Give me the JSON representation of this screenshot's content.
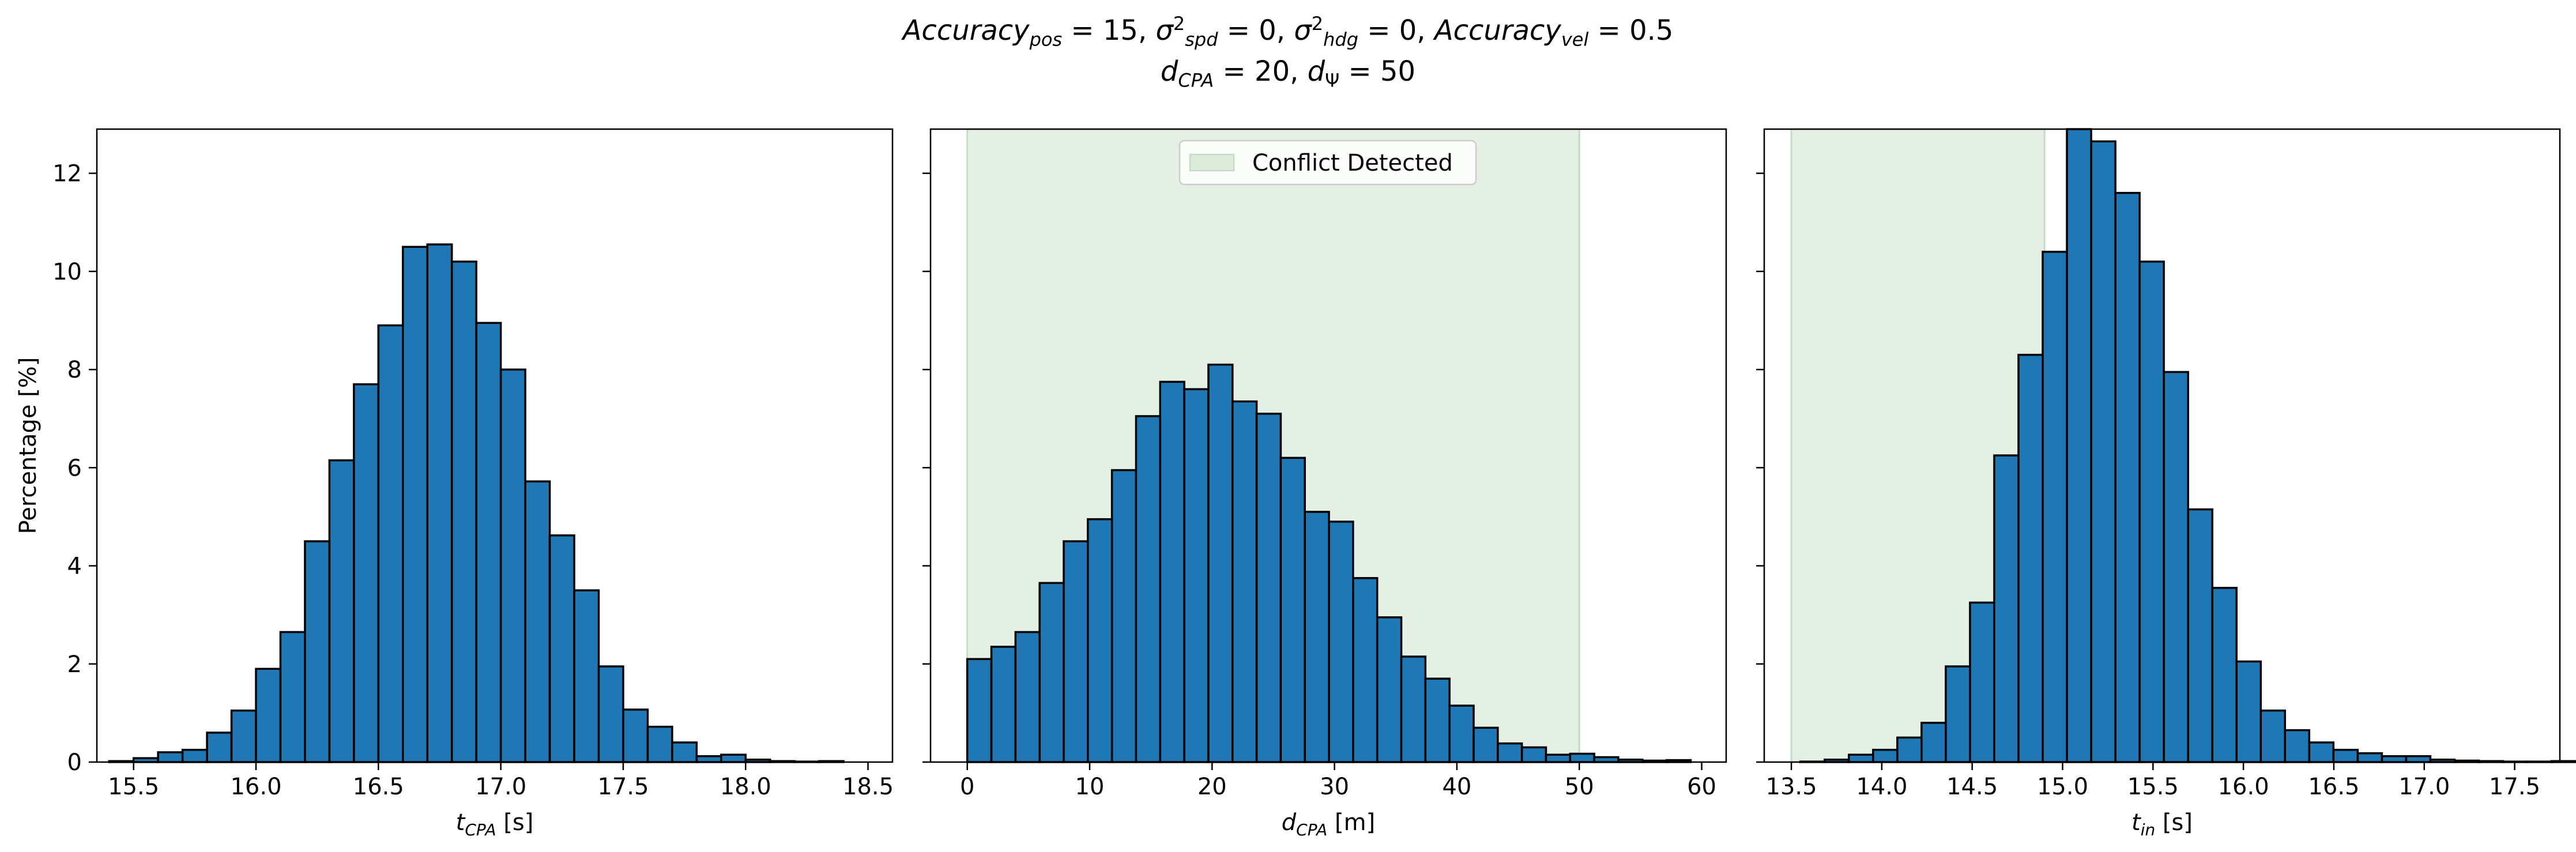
{
  "figure": {
    "title_line1_html": "<i>Accuracy</i><sub><i>pos</i></sub> = 15, <i>σ</i><sup>2</sup><sub><i>spd</i></sub> = 0, <i>σ</i><sup>2</sup><sub><i>hdg</i></sub> = 0, <i>Accuracy</i><sub><i>vel</i></sub> = 0.5",
    "title_line2_html": "<i>d</i><sub><i>CPA</i></sub> = 20, <i>d</i><sub>Ψ</sub> = 50",
    "colors": {
      "bar": "#1f77b4",
      "edge": "#000000",
      "shade": "#dcebdc",
      "shade_edge": "#c3dcc3"
    }
  },
  "chart_data": [
    {
      "type": "bar",
      "subtype": "histogram",
      "xlabel": "t_CPA [s]",
      "xlabel_main": "t",
      "xlabel_sub": "CPA",
      "xlabel_unit": " [s]",
      "ylabel": "Percentage [%]",
      "xlim": [
        15.35,
        18.6
      ],
      "ylim": [
        0,
        12.9
      ],
      "xticks": [
        15.5,
        16.0,
        16.5,
        17.0,
        17.5,
        18.0,
        18.5
      ],
      "xtick_labels": [
        "15.5",
        "16.0",
        "16.5",
        "17.0",
        "17.5",
        "18.0",
        "18.5"
      ],
      "yticks": [
        0,
        2,
        4,
        6,
        8,
        10,
        12
      ],
      "ytick_labels": [
        "0",
        "2",
        "4",
        "6",
        "8",
        "10",
        "12"
      ],
      "bin_start": 15.4,
      "bin_width": 0.1,
      "values": [
        0.02,
        0.08,
        0.2,
        0.25,
        0.6,
        1.05,
        1.9,
        2.65,
        4.5,
        6.15,
        7.7,
        8.9,
        10.5,
        10.55,
        10.2,
        8.95,
        8.0,
        5.72,
        4.62,
        3.5,
        1.95,
        1.07,
        0.72,
        0.4,
        0.12,
        0.15,
        0.05,
        0.02,
        0.01,
        0.02
      ],
      "shaded_region": null,
      "legend": null
    },
    {
      "type": "bar",
      "subtype": "histogram",
      "xlabel": "d_CPA [m]",
      "xlabel_main": "d",
      "xlabel_sub": "CPA",
      "xlabel_unit": " [m]",
      "ylabel": "",
      "xlim": [
        -3,
        62
      ],
      "ylim": [
        0,
        12.9
      ],
      "xticks": [
        0,
        10,
        20,
        30,
        40,
        50,
        60
      ],
      "xtick_labels": [
        "0",
        "10",
        "20",
        "30",
        "40",
        "50",
        "60"
      ],
      "yticks": [
        0,
        2,
        4,
        6,
        8,
        10,
        12
      ],
      "ytick_labels": [
        "",
        "",
        "",
        "",
        "",
        "",
        ""
      ],
      "bin_start": 0,
      "bin_width": 1.97,
      "values": [
        2.1,
        2.35,
        2.65,
        3.65,
        4.5,
        4.95,
        5.95,
        7.05,
        7.75,
        7.6,
        8.1,
        7.35,
        7.1,
        6.2,
        5.1,
        4.9,
        3.75,
        2.95,
        2.15,
        1.7,
        1.15,
        0.7,
        0.38,
        0.3,
        0.15,
        0.17,
        0.1,
        0.05,
        0.03,
        0.04
      ],
      "shaded_region": [
        0,
        50
      ],
      "legend": {
        "label": "Conflict Detected",
        "position": "upper center"
      }
    },
    {
      "type": "bar",
      "subtype": "histogram",
      "xlabel": "t_in [s]",
      "xlabel_main": "t",
      "xlabel_sub": "in",
      "xlabel_unit": " [s]",
      "ylabel": "",
      "xlim": [
        13.35,
        17.75
      ],
      "ylim": [
        0,
        12.9
      ],
      "xticks": [
        13.5,
        14.0,
        14.5,
        15.0,
        15.5,
        16.0,
        16.5,
        17.0,
        17.5
      ],
      "xtick_labels": [
        "13.5",
        "14.0",
        "14.5",
        "15.0",
        "15.5",
        "16.0",
        "16.5",
        "17.0",
        "17.5"
      ],
      "yticks": [
        0,
        2,
        4,
        6,
        8,
        10,
        12
      ],
      "ytick_labels": [
        "",
        "",
        "",
        "",
        "",
        "",
        ""
      ],
      "bin_start": 13.55,
      "bin_width": 0.134,
      "values": [
        0.01,
        0.05,
        0.15,
        0.25,
        0.5,
        0.8,
        1.95,
        3.25,
        6.25,
        8.3,
        10.4,
        12.9,
        12.65,
        11.6,
        10.2,
        7.95,
        5.15,
        3.55,
        2.05,
        1.05,
        0.65,
        0.4,
        0.25,
        0.18,
        0.12,
        0.12,
        0.05,
        0.03,
        0.02,
        0.01,
        0.01,
        0.02
      ],
      "shaded_region": [
        13.5,
        14.9
      ],
      "legend": null
    }
  ]
}
